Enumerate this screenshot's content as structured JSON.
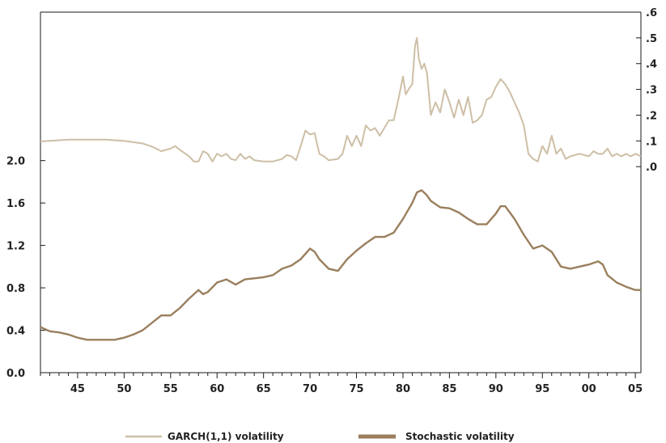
{
  "chart_data": {
    "type": "line",
    "title": "",
    "xlabel": "",
    "grid": false,
    "legend_position": "bottom",
    "x_ticks": [
      "45",
      "50",
      "55",
      "60",
      "65",
      "70",
      "75",
      "80",
      "85",
      "90",
      "95",
      "00",
      "05"
    ],
    "x_range": [
      1941,
      2005.6
    ],
    "left_axis": {
      "ticks": [
        "0.0",
        "0.4",
        "0.8",
        "1.2",
        "1.6",
        "2.0"
      ],
      "range": [
        0.0,
        3.4
      ]
    },
    "right_axis": {
      "ticks": [
        ".0",
        ".1",
        ".2",
        ".3",
        ".4",
        ".5",
        ".6"
      ],
      "range": [
        -0.8,
        0.6
      ]
    },
    "series": [
      {
        "name": "GARCH(1,1) volatility",
        "axis": "right",
        "color": "#cdbfa6",
        "x": [
          1941,
          1942,
          1944,
          1946,
          1948,
          1950,
          1951,
          1952,
          1953,
          1954,
          1955,
          1955.5,
          1956,
          1957,
          1957.5,
          1958,
          1958.5,
          1959,
          1959.5,
          1960,
          1960.5,
          1961,
          1961.5,
          1962,
          1962.5,
          1963,
          1963.5,
          1964,
          1965,
          1966,
          1967,
          1967.5,
          1968,
          1968.5,
          1969,
          1969.5,
          1970,
          1970.5,
          1971,
          1971.5,
          1972,
          1973,
          1973.5,
          1974,
          1974.5,
          1975,
          1975.5,
          1976,
          1976.5,
          1977,
          1977.5,
          1978,
          1978.5,
          1979,
          1979.5,
          1980,
          1980.3,
          1980.6,
          1981,
          1981.3,
          1981.5,
          1981.7,
          1982,
          1982.3,
          1982.6,
          1983,
          1983.5,
          1984,
          1984.5,
          1985,
          1985.5,
          1986,
          1986.5,
          1987,
          1987.5,
          1988,
          1988.5,
          1989,
          1989.5,
          1990,
          1990.5,
          1991,
          1991.5,
          1992,
          1992.5,
          1993,
          1993.5,
          1994,
          1994.5,
          1995,
          1995.5,
          1996,
          1996.5,
          1997,
          1997.5,
          1998,
          1999,
          2000,
          2000.5,
          2001,
          2001.5,
          2002,
          2002.5,
          2003,
          2003.5,
          2004,
          2004.5,
          2005,
          2005.6
        ],
        "values": [
          0.098,
          0.1,
          0.105,
          0.105,
          0.105,
          0.1,
          0.095,
          0.09,
          0.078,
          0.06,
          0.07,
          0.08,
          0.065,
          0.04,
          0.02,
          0.02,
          0.06,
          0.05,
          0.02,
          0.05,
          0.04,
          0.05,
          0.03,
          0.025,
          0.05,
          0.03,
          0.04,
          0.025,
          0.02,
          0.02,
          0.03,
          0.045,
          0.04,
          0.025,
          0.08,
          0.14,
          0.125,
          0.13,
          0.05,
          0.04,
          0.025,
          0.03,
          0.05,
          0.12,
          0.08,
          0.12,
          0.08,
          0.16,
          0.14,
          0.15,
          0.12,
          0.15,
          0.18,
          0.18,
          0.26,
          0.35,
          0.28,
          0.3,
          0.32,
          0.47,
          0.5,
          0.42,
          0.38,
          0.4,
          0.36,
          0.2,
          0.25,
          0.21,
          0.3,
          0.25,
          0.19,
          0.26,
          0.2,
          0.27,
          0.17,
          0.18,
          0.2,
          0.26,
          0.27,
          0.31,
          0.34,
          0.32,
          0.29,
          0.25,
          0.21,
          0.16,
          0.05,
          0.03,
          0.02,
          0.08,
          0.05,
          0.12,
          0.05,
          0.07,
          0.03,
          0.04,
          0.05,
          0.04,
          0.06,
          0.05,
          0.05,
          0.07,
          0.04,
          0.05,
          0.04,
          0.05,
          0.04,
          0.05,
          0.04
        ]
      },
      {
        "name": "Stochastic volatility",
        "axis": "left",
        "color": "#9a7f5d",
        "x": [
          1941,
          1942,
          1943,
          1944,
          1945,
          1946,
          1947,
          1948,
          1949,
          1950,
          1951,
          1952,
          1953,
          1954,
          1955,
          1956,
          1957,
          1958,
          1958.5,
          1959,
          1960,
          1961,
          1962,
          1963,
          1964,
          1965,
          1966,
          1967,
          1968,
          1969,
          1970,
          1970.5,
          1971,
          1972,
          1973,
          1974,
          1975,
          1976,
          1977,
          1978,
          1979,
          1980,
          1981,
          1981.5,
          1982,
          1982.5,
          1983,
          1984,
          1985,
          1986,
          1987,
          1988,
          1989,
          1990,
          1990.5,
          1991,
          1992,
          1993,
          1994,
          1995,
          1996,
          1997,
          1998,
          1999,
          2000,
          2001,
          2001.5,
          2002,
          2003,
          2004,
          2005,
          2005.6
        ],
        "values": [
          0.43,
          0.39,
          0.38,
          0.36,
          0.33,
          0.31,
          0.31,
          0.31,
          0.31,
          0.33,
          0.36,
          0.4,
          0.47,
          0.54,
          0.54,
          0.61,
          0.7,
          0.78,
          0.74,
          0.76,
          0.85,
          0.88,
          0.83,
          0.88,
          0.89,
          0.9,
          0.92,
          0.98,
          1.01,
          1.07,
          1.17,
          1.14,
          1.07,
          0.98,
          0.96,
          1.07,
          1.15,
          1.22,
          1.28,
          1.28,
          1.32,
          1.45,
          1.6,
          1.7,
          1.72,
          1.68,
          1.62,
          1.56,
          1.55,
          1.51,
          1.45,
          1.4,
          1.4,
          1.5,
          1.57,
          1.57,
          1.45,
          1.3,
          1.17,
          1.2,
          1.14,
          1.0,
          0.98,
          1.0,
          1.02,
          1.05,
          1.02,
          0.92,
          0.85,
          0.81,
          0.78,
          0.78
        ]
      }
    ]
  }
}
